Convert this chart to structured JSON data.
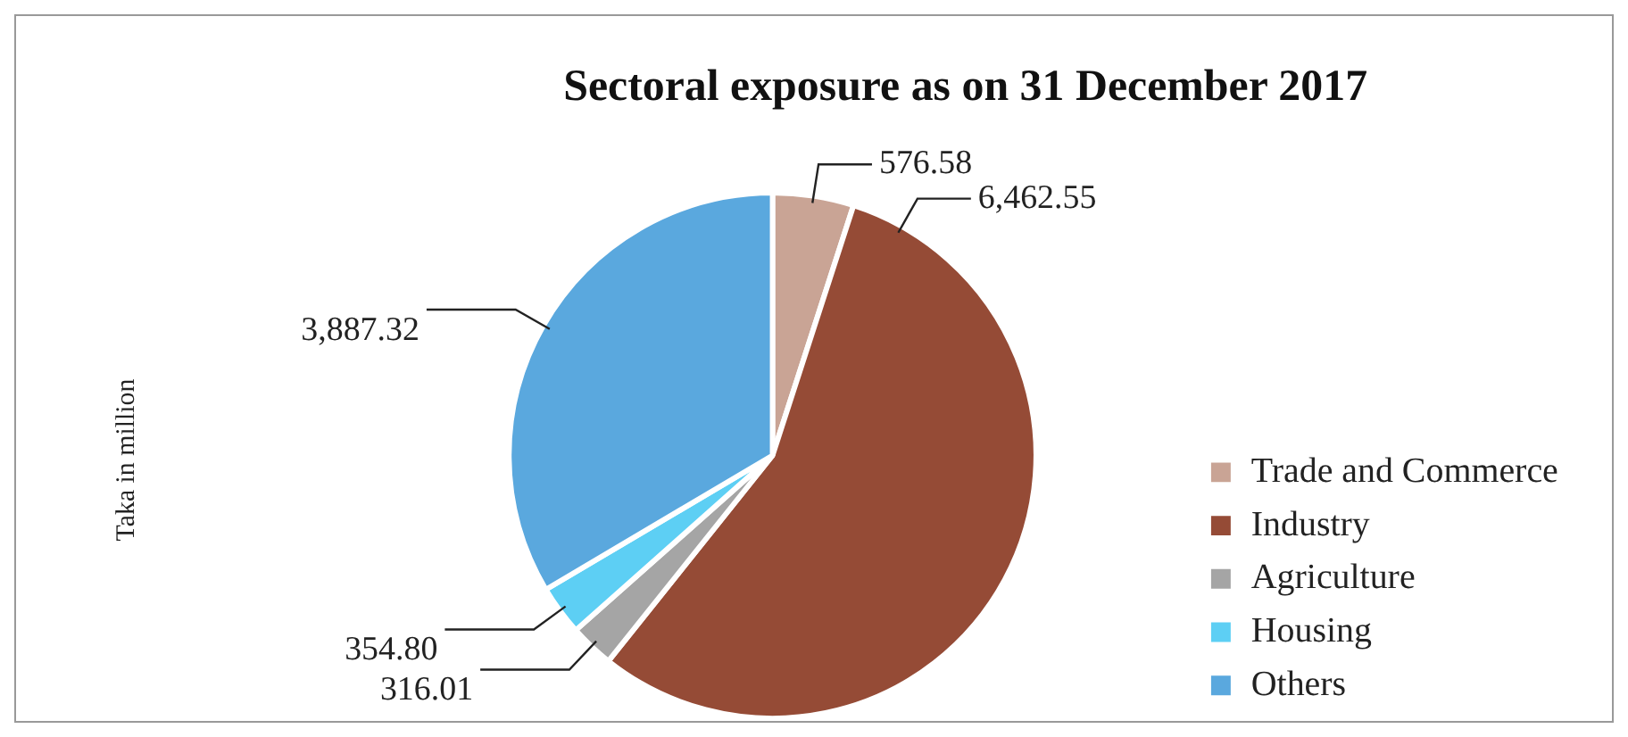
{
  "chart_data": {
    "type": "pie",
    "title": "Sectoral exposure as on 31 December 2017",
    "ylabel": "Taka in million",
    "categories": [
      "Trade and Commerce",
      "Industry",
      "Agriculture",
      "Housing",
      "Others"
    ],
    "values": [
      576.58,
      6462.55,
      316.01,
      354.8,
      3887.32
    ],
    "value_labels": [
      "576.58",
      "6,462.55",
      "316.01",
      "354.80",
      "3,887.32"
    ],
    "colors": [
      "#c9a495",
      "#954b36",
      "#a5a5a5",
      "#5dcff4",
      "#5aa8de"
    ],
    "legend": "right"
  }
}
